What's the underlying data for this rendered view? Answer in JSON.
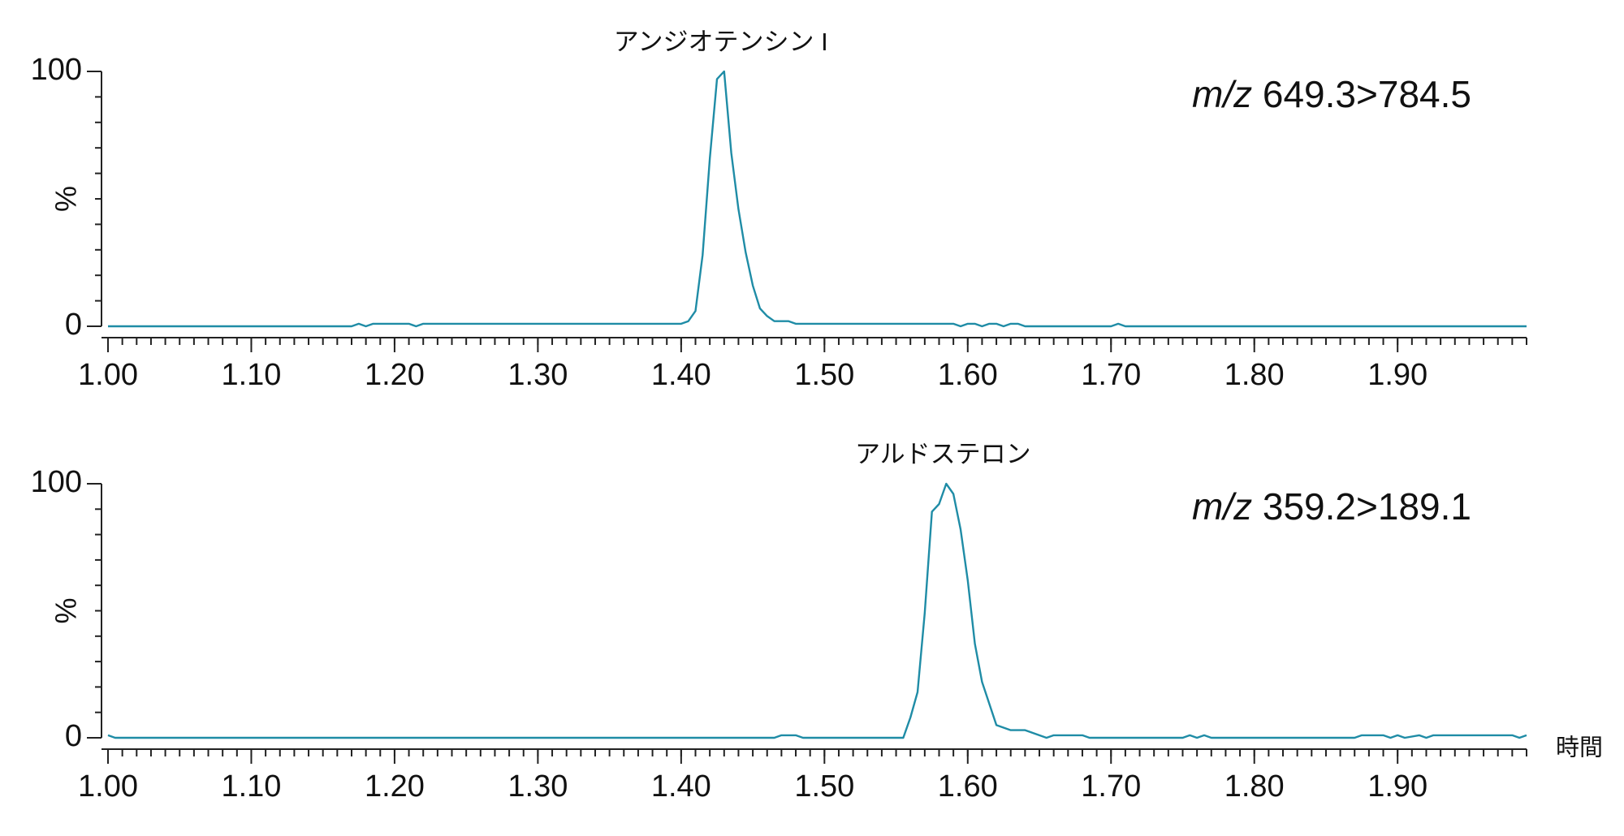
{
  "chart_data": [
    {
      "type": "line",
      "peak_label": "アンジオテンシン I",
      "channel_label": "m/z 649.3>784.5",
      "ylabel": "%",
      "color": "#1f8ca6",
      "x": [
        1.0,
        1.17,
        1.175,
        1.18,
        1.185,
        1.21,
        1.215,
        1.22,
        1.4,
        1.405,
        1.41,
        1.415,
        1.42,
        1.425,
        1.43,
        1.435,
        1.44,
        1.445,
        1.45,
        1.455,
        1.46,
        1.465,
        1.475,
        1.48,
        1.59,
        1.595,
        1.6,
        1.605,
        1.61,
        1.615,
        1.62,
        1.625,
        1.63,
        1.635,
        1.64,
        1.7,
        1.705,
        1.71,
        1.99
      ],
      "values": [
        0,
        0,
        1,
        0,
        1,
        1,
        0,
        1,
        1,
        2,
        6,
        28,
        66,
        97,
        100,
        68,
        46,
        29,
        16,
        7,
        4,
        2,
        2,
        1,
        1,
        0,
        1,
        1,
        0,
        1,
        1,
        0,
        1,
        1,
        0,
        0,
        1,
        0,
        0
      ],
      "xlim": [
        1.0,
        1.99
      ],
      "ylim": [
        0,
        100
      ],
      "yticks": [
        0,
        100
      ],
      "xticks": [
        {
          "value": 1.0,
          "label": "1.00"
        },
        {
          "value": 1.1,
          "label": "1.10"
        },
        {
          "value": 1.2,
          "label": "1.20"
        },
        {
          "value": 1.3,
          "label": "1.30"
        },
        {
          "value": 1.4,
          "label": "1.40"
        },
        {
          "value": 1.5,
          "label": "1.50"
        },
        {
          "value": 1.6,
          "label": "1.60"
        },
        {
          "value": 1.7,
          "label": "1.70"
        },
        {
          "value": 1.8,
          "label": "1.80"
        },
        {
          "value": 1.9,
          "label": "1.90"
        }
      ]
    },
    {
      "type": "line",
      "peak_label": "アルドステロン",
      "channel_label": "m/z 359.2>189.1",
      "ylabel": "%",
      "xlabel": "時間",
      "color": "#1f8ca6",
      "x": [
        1.0,
        1.005,
        1.465,
        1.47,
        1.48,
        1.485,
        1.555,
        1.56,
        1.565,
        1.57,
        1.575,
        1.58,
        1.585,
        1.59,
        1.595,
        1.6,
        1.605,
        1.61,
        1.62,
        1.625,
        1.63,
        1.64,
        1.645,
        1.65,
        1.655,
        1.66,
        1.68,
        1.685,
        1.75,
        1.755,
        1.76,
        1.765,
        1.77,
        1.87,
        1.875,
        1.89,
        1.895,
        1.9,
        1.905,
        1.915,
        1.92,
        1.925,
        1.98,
        1.985,
        1.99
      ],
      "values": [
        1,
        0,
        0,
        1,
        1,
        0,
        0,
        8,
        18,
        49,
        89,
        92,
        100,
        96,
        82,
        62,
        37,
        22,
        5,
        4,
        3,
        3,
        2,
        1,
        0,
        1,
        1,
        0,
        0,
        1,
        0,
        1,
        0,
        0,
        1,
        1,
        0,
        1,
        0,
        1,
        0,
        1,
        1,
        0,
        1
      ],
      "xlim": [
        1.0,
        1.99
      ],
      "ylim": [
        0,
        100
      ],
      "yticks": [
        0,
        100
      ],
      "xticks": [
        {
          "value": 1.0,
          "label": "1.00"
        },
        {
          "value": 1.1,
          "label": "1.10"
        },
        {
          "value": 1.2,
          "label": "1.20"
        },
        {
          "value": 1.3,
          "label": "1.30"
        },
        {
          "value": 1.4,
          "label": "1.40"
        },
        {
          "value": 1.5,
          "label": "1.50"
        },
        {
          "value": 1.6,
          "label": "1.60"
        },
        {
          "value": 1.7,
          "label": "1.70"
        },
        {
          "value": 1.8,
          "label": "1.80"
        },
        {
          "value": 1.9,
          "label": "1.90"
        }
      ]
    }
  ]
}
